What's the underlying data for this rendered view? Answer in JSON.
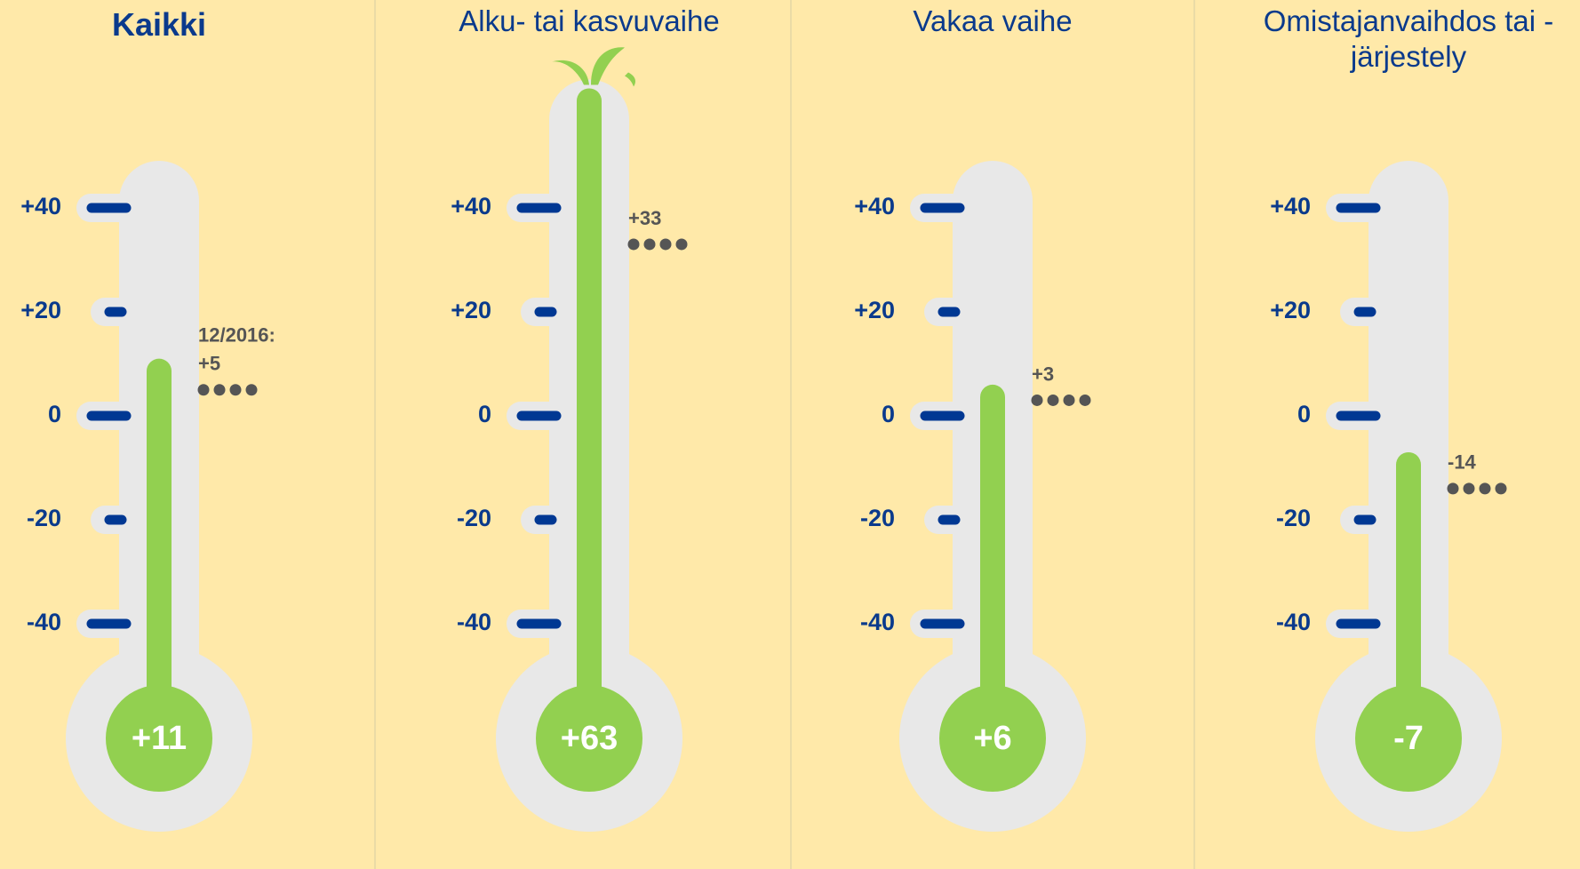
{
  "chart_data": [
    {
      "type": "thermometer",
      "title": "Kaikki",
      "title_bold": true,
      "value": 11,
      "value_label": "+11",
      "previous": {
        "date_label": "12/2016:",
        "value": 5,
        "value_label": "+5"
      },
      "ylim": [
        -40,
        40
      ],
      "yticks": [
        {
          "value": 40,
          "label": "+40"
        },
        {
          "value": 20,
          "label": "+20"
        },
        0,
        -20,
        -40
      ],
      "color": "#92d050"
    },
    {
      "type": "thermometer",
      "title": "Alku- tai kasvuvaihe",
      "value": 63,
      "value_label": "+63",
      "previous": {
        "value": 33,
        "value_label": "+33"
      },
      "ylim": [
        -40,
        40
      ],
      "yticks": [
        {
          "value": 40,
          "label": "+40"
        },
        {
          "value": 20,
          "label": "+20"
        },
        0,
        -20,
        -40
      ],
      "color": "#92d050"
    },
    {
      "type": "thermometer",
      "title": "Vakaa vaihe",
      "value": 6,
      "value_label": "+6",
      "previous": {
        "value": 3,
        "value_label": "+3"
      },
      "ylim": [
        -40,
        40
      ],
      "yticks": [
        {
          "value": 40,
          "label": "+40"
        },
        {
          "value": 20,
          "label": "+20"
        },
        0,
        -20,
        -40
      ],
      "color": "#92d050"
    },
    {
      "type": "thermometer",
      "title": "Omistajanvaihdos tai -järjestely",
      "value": -7,
      "value_label": "-7",
      "previous": {
        "value": -14,
        "value_label": "-14"
      },
      "ylim": [
        -40,
        40
      ],
      "yticks": [
        {
          "value": 40,
          "label": "+40"
        },
        {
          "value": 20,
          "label": "+20"
        },
        0,
        -20,
        -40
      ],
      "color": "#92d050"
    }
  ]
}
